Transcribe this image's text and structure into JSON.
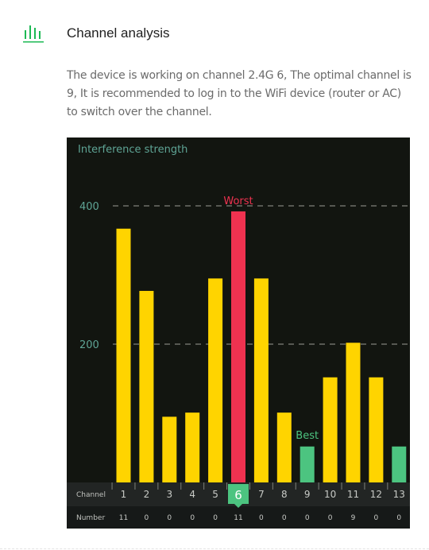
{
  "section": {
    "title": "Channel analysis",
    "description": "The device is working on channel 2.4G 6, The optimal channel is 9, It is recommended to log in to the WiFi device (router or AC) to switch over the channel.",
    "icon": "signal-bars-icon"
  },
  "colors": {
    "normal": "#ffd400",
    "worst": "#ef3250",
    "best": "#4cc480",
    "accent": "#1db954"
  },
  "chart_data": {
    "type": "bar",
    "title": "Interference strength",
    "categories": [
      "1",
      "2",
      "3",
      "4",
      "5",
      "6",
      "7",
      "8",
      "9",
      "10",
      "11",
      "12",
      "13"
    ],
    "values": [
      367,
      277,
      95,
      101,
      295,
      392,
      295,
      101,
      52,
      152,
      202,
      152,
      52
    ],
    "ylim": [
      0,
      400
    ],
    "yticks": [
      200,
      400
    ],
    "grid": "dashed-horizontal",
    "current_channel": "6",
    "worst_label": "Worst",
    "worst_channel": "6",
    "best_label": "Best",
    "best_channel": "9",
    "row_labels": {
      "channel": "Channel",
      "number": "Number"
    },
    "numbers": [
      "11",
      "0",
      "0",
      "0",
      "0",
      "11",
      "0",
      "0",
      "0",
      "0",
      "9",
      "0",
      "0"
    ]
  }
}
